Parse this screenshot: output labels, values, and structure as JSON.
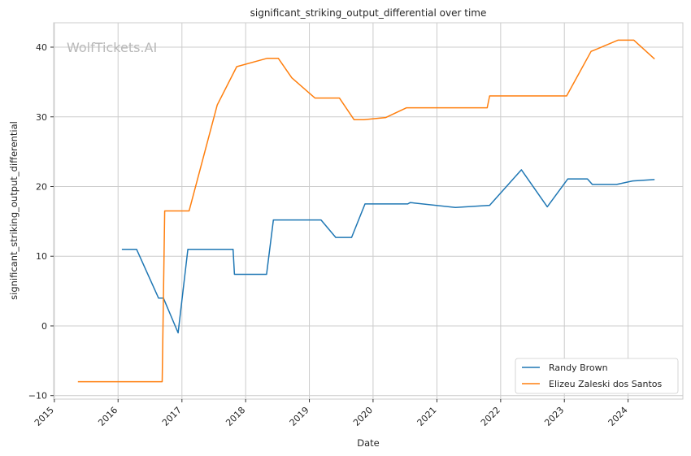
{
  "chart_data": {
    "type": "line",
    "title": "significant_striking_output_differential over time",
    "xlabel": "Date",
    "ylabel": "significant_striking_output_differential",
    "watermark": "WolfTickets.AI",
    "x_ticks": [
      "2015",
      "2016",
      "2017",
      "2018",
      "2019",
      "2020",
      "2021",
      "2022",
      "2023",
      "2024"
    ],
    "y_ticks": [
      "−10",
      "0",
      "10",
      "20",
      "30",
      "40"
    ],
    "xlim": [
      "2014-12-28",
      "2024-11-10"
    ],
    "ylim": [
      -10.5,
      43.5
    ],
    "grid": true,
    "legend_position": "lower-right",
    "series": [
      {
        "name": "Randy Brown",
        "color": "#1f77b4",
        "points": [
          [
            "2016-01-23",
            11
          ],
          [
            "2016-04-16",
            11
          ],
          [
            "2016-08-20",
            4
          ],
          [
            "2016-09-17",
            4
          ],
          [
            "2016-12-10",
            -1
          ],
          [
            "2017-02-04",
            11
          ],
          [
            "2017-10-21",
            11
          ],
          [
            "2017-10-29",
            7.4
          ],
          [
            "2018-05-01",
            7.4
          ],
          [
            "2018-06-09",
            15.2
          ],
          [
            "2019-03-09",
            15.2
          ],
          [
            "2019-06-01",
            12.7
          ],
          [
            "2019-08-31",
            12.7
          ],
          [
            "2019-11-16",
            17.5
          ],
          [
            "2020-07-18",
            17.5
          ],
          [
            "2020-08-01",
            17.7
          ],
          [
            "2021-04-17",
            17
          ],
          [
            "2021-10-30",
            17.3
          ],
          [
            "2022-04-30",
            22.4
          ],
          [
            "2022-09-25",
            17.1
          ],
          [
            "2023-01-21",
            21.1
          ],
          [
            "2023-05-13",
            21.1
          ],
          [
            "2023-06-10",
            20.3
          ],
          [
            "2023-10-28",
            20.3
          ],
          [
            "2024-01-27",
            20.8
          ],
          [
            "2024-06-01",
            21
          ]
        ]
      },
      {
        "name": "Elizeu Zaleski dos Santos",
        "color": "#ff7f0e",
        "points": [
          [
            "2015-05-16",
            -8
          ],
          [
            "2016-09-10",
            -8
          ],
          [
            "2016-09-24",
            16.5
          ],
          [
            "2017-02-11",
            16.5
          ],
          [
            "2017-07-22",
            31.7
          ],
          [
            "2017-11-11",
            37.2
          ],
          [
            "2018-05-05",
            38.4
          ],
          [
            "2018-07-07",
            38.4
          ],
          [
            "2018-09-22",
            35.6
          ],
          [
            "2019-02-02",
            32.7
          ],
          [
            "2019-06-22",
            32.7
          ],
          [
            "2019-09-14",
            29.6
          ],
          [
            "2019-11-09",
            29.6
          ],
          [
            "2020-03-14",
            29.9
          ],
          [
            "2020-07-11",
            31.3
          ],
          [
            "2021-10-16",
            31.3
          ],
          [
            "2021-10-30",
            33
          ],
          [
            "2023-01-14",
            33
          ],
          [
            "2023-06-03",
            39.4
          ],
          [
            "2023-06-24",
            39.6
          ],
          [
            "2023-11-04",
            41
          ],
          [
            "2024-02-03",
            41
          ],
          [
            "2024-06-01",
            38.3
          ]
        ]
      }
    ]
  }
}
